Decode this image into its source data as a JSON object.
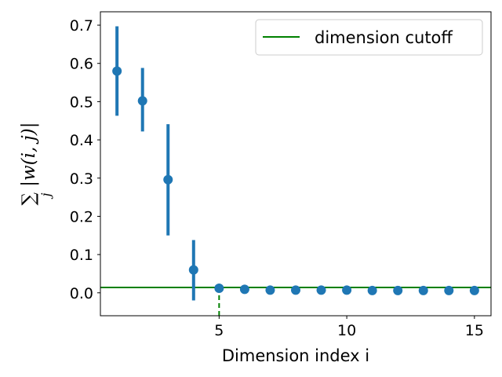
{
  "chart_data": {
    "type": "scatter",
    "title": "",
    "xlabel": "Dimension index i",
    "ylabel": "∑ |w(i, j)|",
    "ylabel_sub": "j",
    "xlim": [
      0.35,
      15.65
    ],
    "ylim": [
      -0.06,
      0.735
    ],
    "xticks": [
      5,
      10,
      15
    ],
    "yticks": [
      0.0,
      0.1,
      0.2,
      0.3,
      0.4,
      0.5,
      0.6,
      0.7
    ],
    "ytick_labels": [
      "0.0",
      "0.1",
      "0.2",
      "0.3",
      "0.4",
      "0.5",
      "0.6",
      "0.7"
    ],
    "xtick_labels": [
      "5",
      "10",
      "15"
    ],
    "grid": false,
    "legend_position": "top-right",
    "colors": {
      "points": "#1f77b4",
      "cutoff": "#008000",
      "axes": "#000000"
    },
    "series": [
      {
        "x": [
          1,
          2,
          3,
          4,
          5,
          6,
          7,
          8,
          9,
          10,
          11,
          12,
          13,
          14,
          15
        ],
        "y": [
          0.58,
          0.502,
          0.296,
          0.06,
          0.012,
          0.009,
          0.007,
          0.007,
          0.007,
          0.007,
          0.006,
          0.006,
          0.006,
          0.006,
          0.006
        ],
        "err_low": [
          0.463,
          0.422,
          0.15,
          -0.02,
          null,
          null,
          null,
          null,
          null,
          null,
          null,
          null,
          null,
          null,
          null
        ],
        "err_high": [
          0.697,
          0.588,
          0.441,
          0.138,
          null,
          null,
          null,
          null,
          null,
          null,
          null,
          null,
          null,
          null,
          null
        ]
      }
    ],
    "cutoff": {
      "name": "dimension cutoff",
      "y": 0.014,
      "x": 5
    }
  }
}
